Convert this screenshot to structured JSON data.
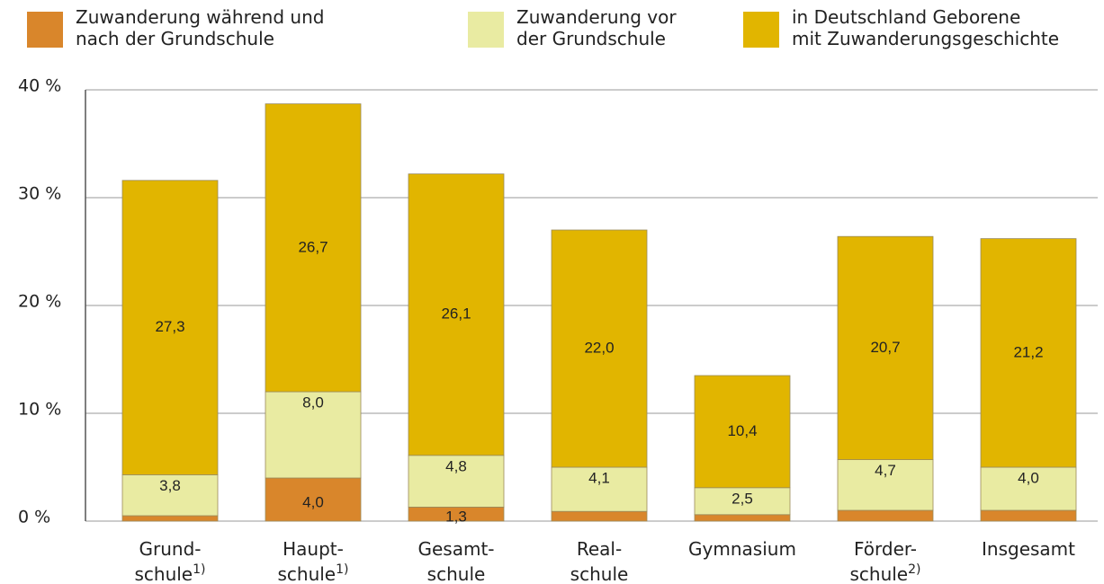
{
  "chart_data": {
    "type": "stacked_bar",
    "categories": [
      "Grund-\nschule1)",
      "Haupt-\nschule1)",
      "Gesamt-\nschule",
      "Real-\nschule",
      "Gymnasium",
      "Förder-\nschule2)",
      "Insgesamt"
    ],
    "series": [
      {
        "name": "Zuwanderung während und\nnach der Grundschule",
        "color": "#d9862b",
        "values": [
          0.5,
          4.0,
          1.3,
          0.9,
          0.6,
          1.0,
          1.0
        ],
        "value_labels": [
          "0,5",
          "4,0",
          "1,3",
          "0,9",
          "0,6",
          "1,0",
          "1,0"
        ]
      },
      {
        "name": "Zuwanderung vor\nder Grundschule",
        "color": "#e9eba2",
        "values": [
          3.8,
          8.0,
          4.8,
          4.1,
          2.5,
          4.7,
          4.0
        ],
        "value_labels": [
          "3,8",
          "8,0",
          "4,8",
          "4,1",
          "2,5",
          "4,7",
          "4,0"
        ]
      },
      {
        "name": "in Deutschland Geborene\nmit Zuwanderungsgeschichte",
        "color": "#e1b500",
        "values": [
          27.3,
          26.7,
          26.1,
          22.0,
          10.4,
          20.7,
          21.2
        ],
        "value_labels": [
          "27,3",
          "26,7",
          "26,1",
          "22,0",
          "10,4",
          "20,7",
          "21,2"
        ]
      }
    ],
    "ylim": [
      0,
      40
    ],
    "yticks": [
      {
        "value": 0,
        "label": "0 %"
      },
      {
        "value": 10,
        "label": "10 %"
      },
      {
        "value": 20,
        "label": "20 %"
      },
      {
        "value": 30,
        "label": "30 %"
      },
      {
        "value": 40,
        "label": "40 %"
      }
    ],
    "grid": true
  }
}
